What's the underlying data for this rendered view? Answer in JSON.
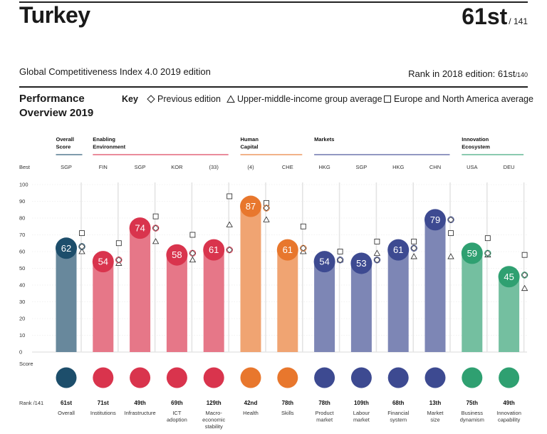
{
  "header": {
    "country": "Turkey",
    "rank": "61st",
    "rank_of": "/ 141",
    "edition": "Global Competitiveness Index 4.0 2019 edition",
    "prev_rank_label": "Rank in 2018 edition: 61st",
    "prev_rank_of": "/140",
    "performance_title": "Performance Overview 2019",
    "key_label": "Key",
    "key_items": [
      "Previous edition",
      "Upper-middle-income group average",
      "Europe and North America average"
    ]
  },
  "chart_data": {
    "type": "bar",
    "title": "Performance Overview 2019",
    "ylim": [
      0,
      100
    ],
    "yticks": [
      0,
      10,
      20,
      30,
      40,
      50,
      60,
      70,
      80,
      90,
      100
    ],
    "row_labels": {
      "best": "Best",
      "score": "Score",
      "rank": "Rank /141"
    },
    "groups": [
      {
        "label": "Overall Score",
        "color": "#1d4e6b",
        "from": 0,
        "to": 0
      },
      {
        "label": "Enabling Environment",
        "color": "#d9344d",
        "from": 1,
        "to": 4
      },
      {
        "label": "Human Capital",
        "color": "#e8772d",
        "from": 5,
        "to": 6
      },
      {
        "label": "Markets",
        "color": "#3d4a91",
        "from": 7,
        "to": 10
      },
      {
        "label": "Innovation Ecosystem",
        "color": "#2fa071",
        "from": 11,
        "to": 12
      }
    ],
    "categories": [
      "Overall",
      "Institutions",
      "Infrastructure",
      "ICT adoption",
      "Macro-economic stability",
      "Health",
      "Skills",
      "Product market",
      "Labour market",
      "Financial system",
      "Market size",
      "Business dynamism",
      "Innovation capability"
    ],
    "category_lines": [
      [
        "Overall"
      ],
      [
        "Institutions"
      ],
      [
        "Infrastructure"
      ],
      [
        "ICT",
        "adoption"
      ],
      [
        "Macro-",
        "economic",
        "stability"
      ],
      [
        "Health"
      ],
      [
        "Skills"
      ],
      [
        "Product",
        "market"
      ],
      [
        "Labour",
        "market"
      ],
      [
        "Financial",
        "system"
      ],
      [
        "Market",
        "size"
      ],
      [
        "Business",
        "dynamism"
      ],
      [
        "Innovation",
        "capability"
      ]
    ],
    "best": [
      "SGP",
      "FIN",
      "SGP",
      "KOR",
      "(33)",
      "(4)",
      "CHE",
      "HKG",
      "SGP",
      "HKG",
      "CHN",
      "USA",
      "DEU"
    ],
    "ranks": [
      "61st",
      "71st",
      "49th",
      "69th",
      "129th",
      "42nd",
      "78th",
      "78th",
      "109th",
      "68th",
      "13th",
      "75th",
      "49th"
    ],
    "colors": [
      "#1d4e6b",
      "#d9344d",
      "#d9344d",
      "#d9344d",
      "#d9344d",
      "#e8772d",
      "#e8772d",
      "#3d4a91",
      "#3d4a91",
      "#3d4a91",
      "#3d4a91",
      "#2fa071",
      "#2fa071"
    ],
    "series": [
      {
        "name": "Score",
        "values": [
          62,
          54,
          74,
          58,
          61,
          87,
          61,
          54,
          53,
          61,
          79,
          59,
          45
        ]
      },
      {
        "name": "Previous edition",
        "values": [
          63,
          55,
          74,
          59,
          61,
          86,
          62,
          55,
          55,
          62,
          79,
          59,
          46
        ]
      },
      {
        "name": "Upper-middle-income group average",
        "values": [
          60,
          53,
          66,
          55,
          76,
          79,
          60,
          55,
          59,
          57,
          57,
          58,
          38
        ]
      },
      {
        "name": "Europe and North America average",
        "values": [
          71,
          65,
          81,
          70,
          93,
          89,
          75,
          60,
          66,
          66,
          71,
          68,
          58
        ]
      }
    ]
  }
}
